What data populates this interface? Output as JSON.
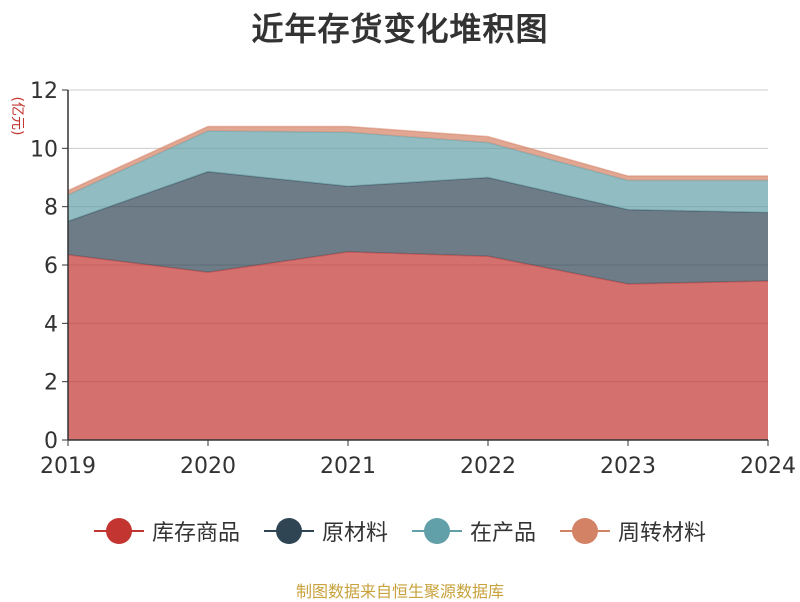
{
  "chart_data": {
    "type": "area",
    "stacked": true,
    "title": "近年存货变化堆积图",
    "ylabel": "(亿元)",
    "x": [
      "2019",
      "2020",
      "2021",
      "2022",
      "2023",
      "2024"
    ],
    "ylim": [
      0,
      12
    ],
    "yticks": [
      0,
      2,
      4,
      6,
      8,
      10,
      12
    ],
    "grid": true,
    "legend_position": "bottom",
    "series": [
      {
        "name": "库存商品",
        "color": "#c23531",
        "values": [
          6.35,
          5.75,
          6.45,
          6.3,
          5.35,
          5.45
        ]
      },
      {
        "name": "原材料",
        "color": "#2f4554",
        "values": [
          1.15,
          3.45,
          2.25,
          2.7,
          2.55,
          2.35
        ]
      },
      {
        "name": "在产品",
        "color": "#61a0a8",
        "values": [
          0.9,
          1.4,
          1.85,
          1.2,
          1.0,
          1.1
        ]
      },
      {
        "name": "周转材料",
        "color": "#d48265",
        "values": [
          0.15,
          0.15,
          0.2,
          0.2,
          0.15,
          0.15
        ]
      }
    ]
  },
  "footer": {
    "source": "制图数据来自恒生聚源数据库"
  }
}
